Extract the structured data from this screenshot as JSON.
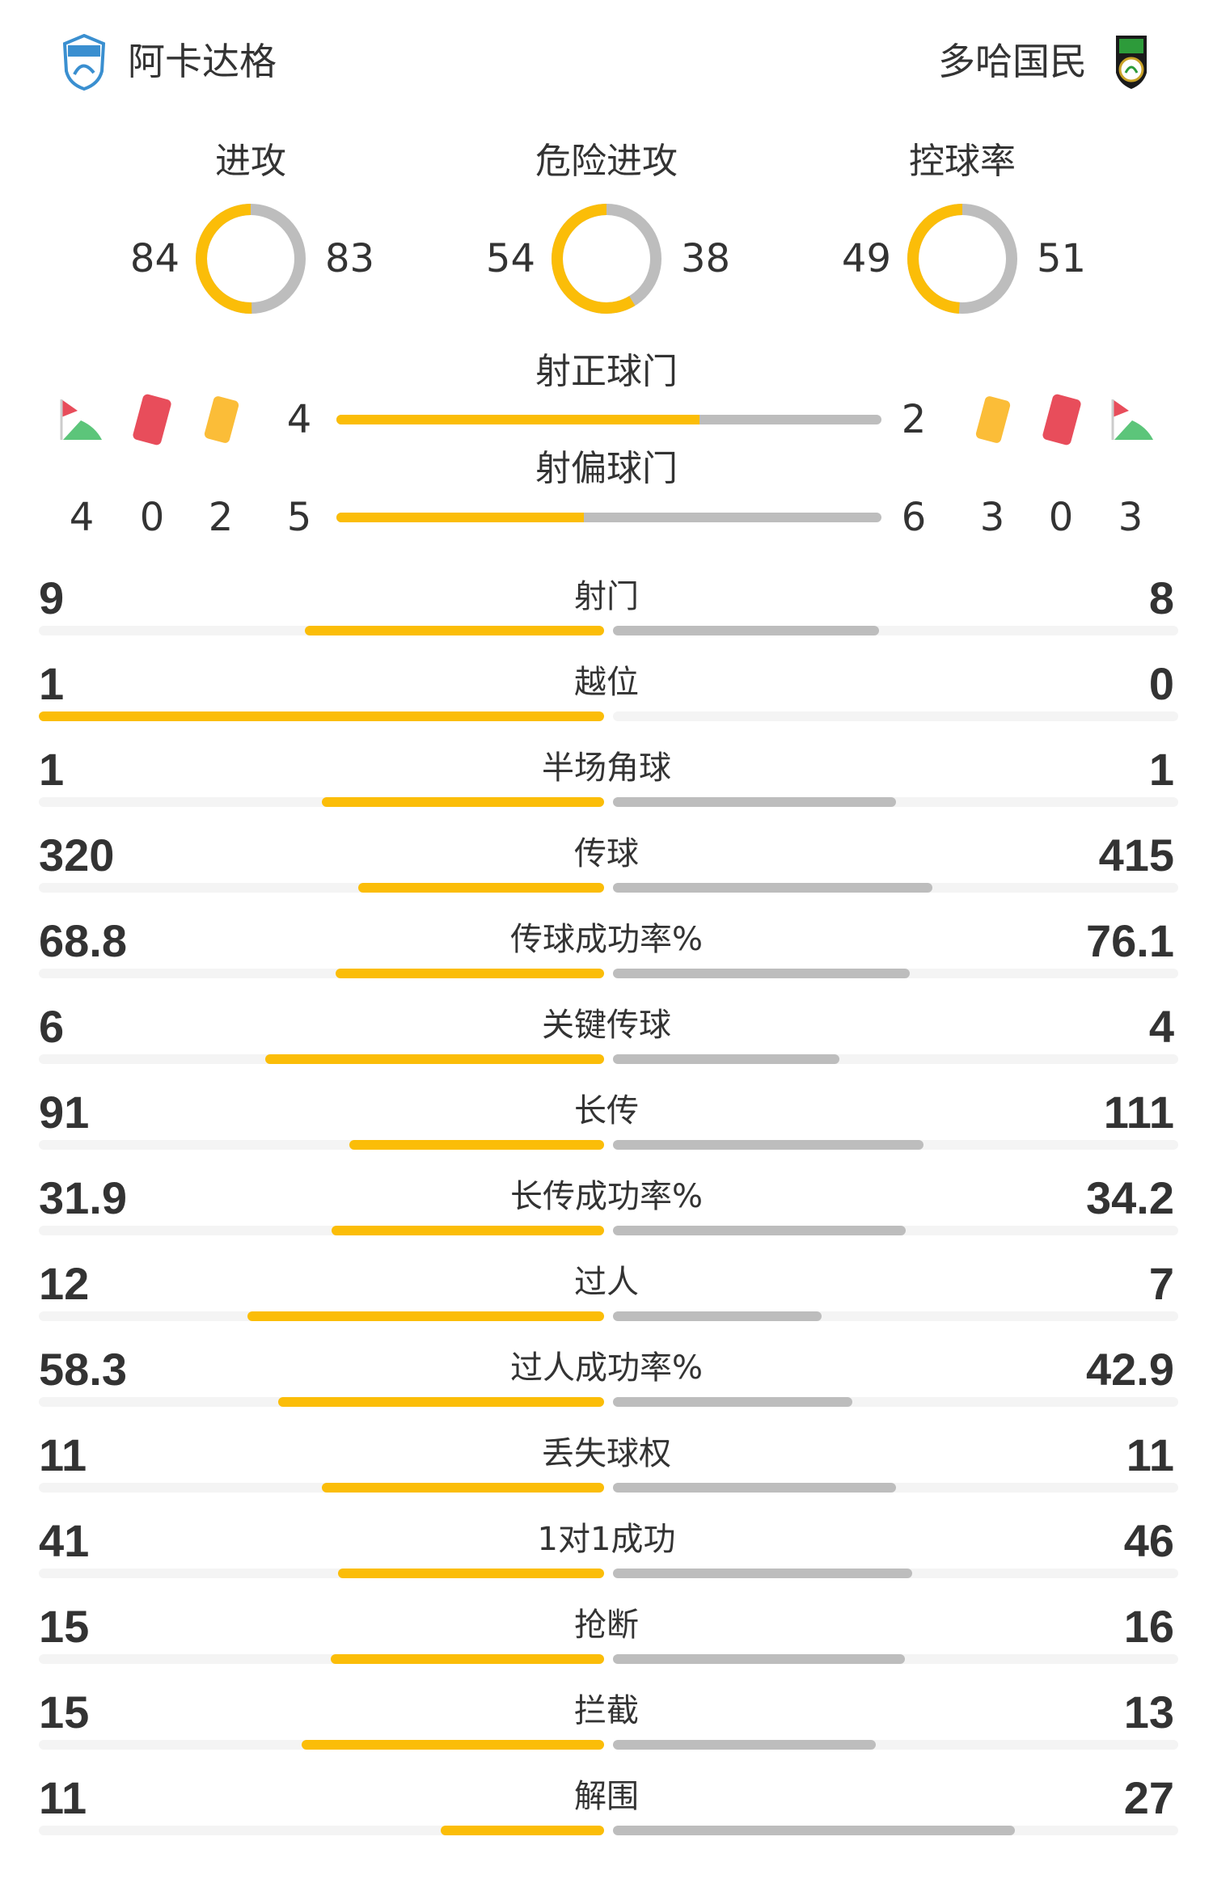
{
  "home": {
    "name": "阿卡达格",
    "logo": "al-arabi-shield-logo"
  },
  "away": {
    "name": "多哈国民",
    "logo": "al-ahli-shield-logo"
  },
  "colors": {
    "home": "#fbbd08",
    "away": "#bdbdbd",
    "track": "#f4f4f4",
    "red_card": "#e84d5b",
    "yellow_card": "#fbbd38",
    "corner_flag": "#5cc57a"
  },
  "donuts": [
    {
      "label": "进攻",
      "home": 84,
      "away": 83
    },
    {
      "label": "危险进攻",
      "home": 54,
      "away": 38
    },
    {
      "label": "控球率",
      "home": 49,
      "away": 51
    }
  ],
  "shots_on_target": {
    "label": "射正球门",
    "home": 4,
    "away": 2
  },
  "shots_off_target": {
    "label": "射偏球门",
    "home": 5,
    "away": 6
  },
  "home_counts": {
    "corners": 4,
    "red_cards": 0,
    "yellow_cards": 2
  },
  "away_counts": {
    "yellow_cards": 3,
    "red_cards": 0,
    "corners": 3
  },
  "icons": {
    "corner": "corner-flag-icon",
    "red": "red-card-icon",
    "yellow": "yellow-card-icon"
  },
  "stats": [
    {
      "label": "射门",
      "home": "9",
      "away": "8"
    },
    {
      "label": "越位",
      "home": "1",
      "away": "0"
    },
    {
      "label": "半场角球",
      "home": "1",
      "away": "1"
    },
    {
      "label": "传球",
      "home": "320",
      "away": "415"
    },
    {
      "label": "传球成功率%",
      "home": "68.8",
      "away": "76.1"
    },
    {
      "label": "关键传球",
      "home": "6",
      "away": "4"
    },
    {
      "label": "长传",
      "home": "91",
      "away": "111"
    },
    {
      "label": "长传成功率%",
      "home": "31.9",
      "away": "34.2"
    },
    {
      "label": "过人",
      "home": "12",
      "away": "7"
    },
    {
      "label": "过人成功率%",
      "home": "58.3",
      "away": "42.9"
    },
    {
      "label": "丢失球权",
      "home": "11",
      "away": "11"
    },
    {
      "label": "1对1成功",
      "home": "41",
      "away": "46"
    },
    {
      "label": "抢断",
      "home": "15",
      "away": "16"
    },
    {
      "label": "拦截",
      "home": "15",
      "away": "13"
    },
    {
      "label": "解围",
      "home": "11",
      "away": "27"
    }
  ]
}
